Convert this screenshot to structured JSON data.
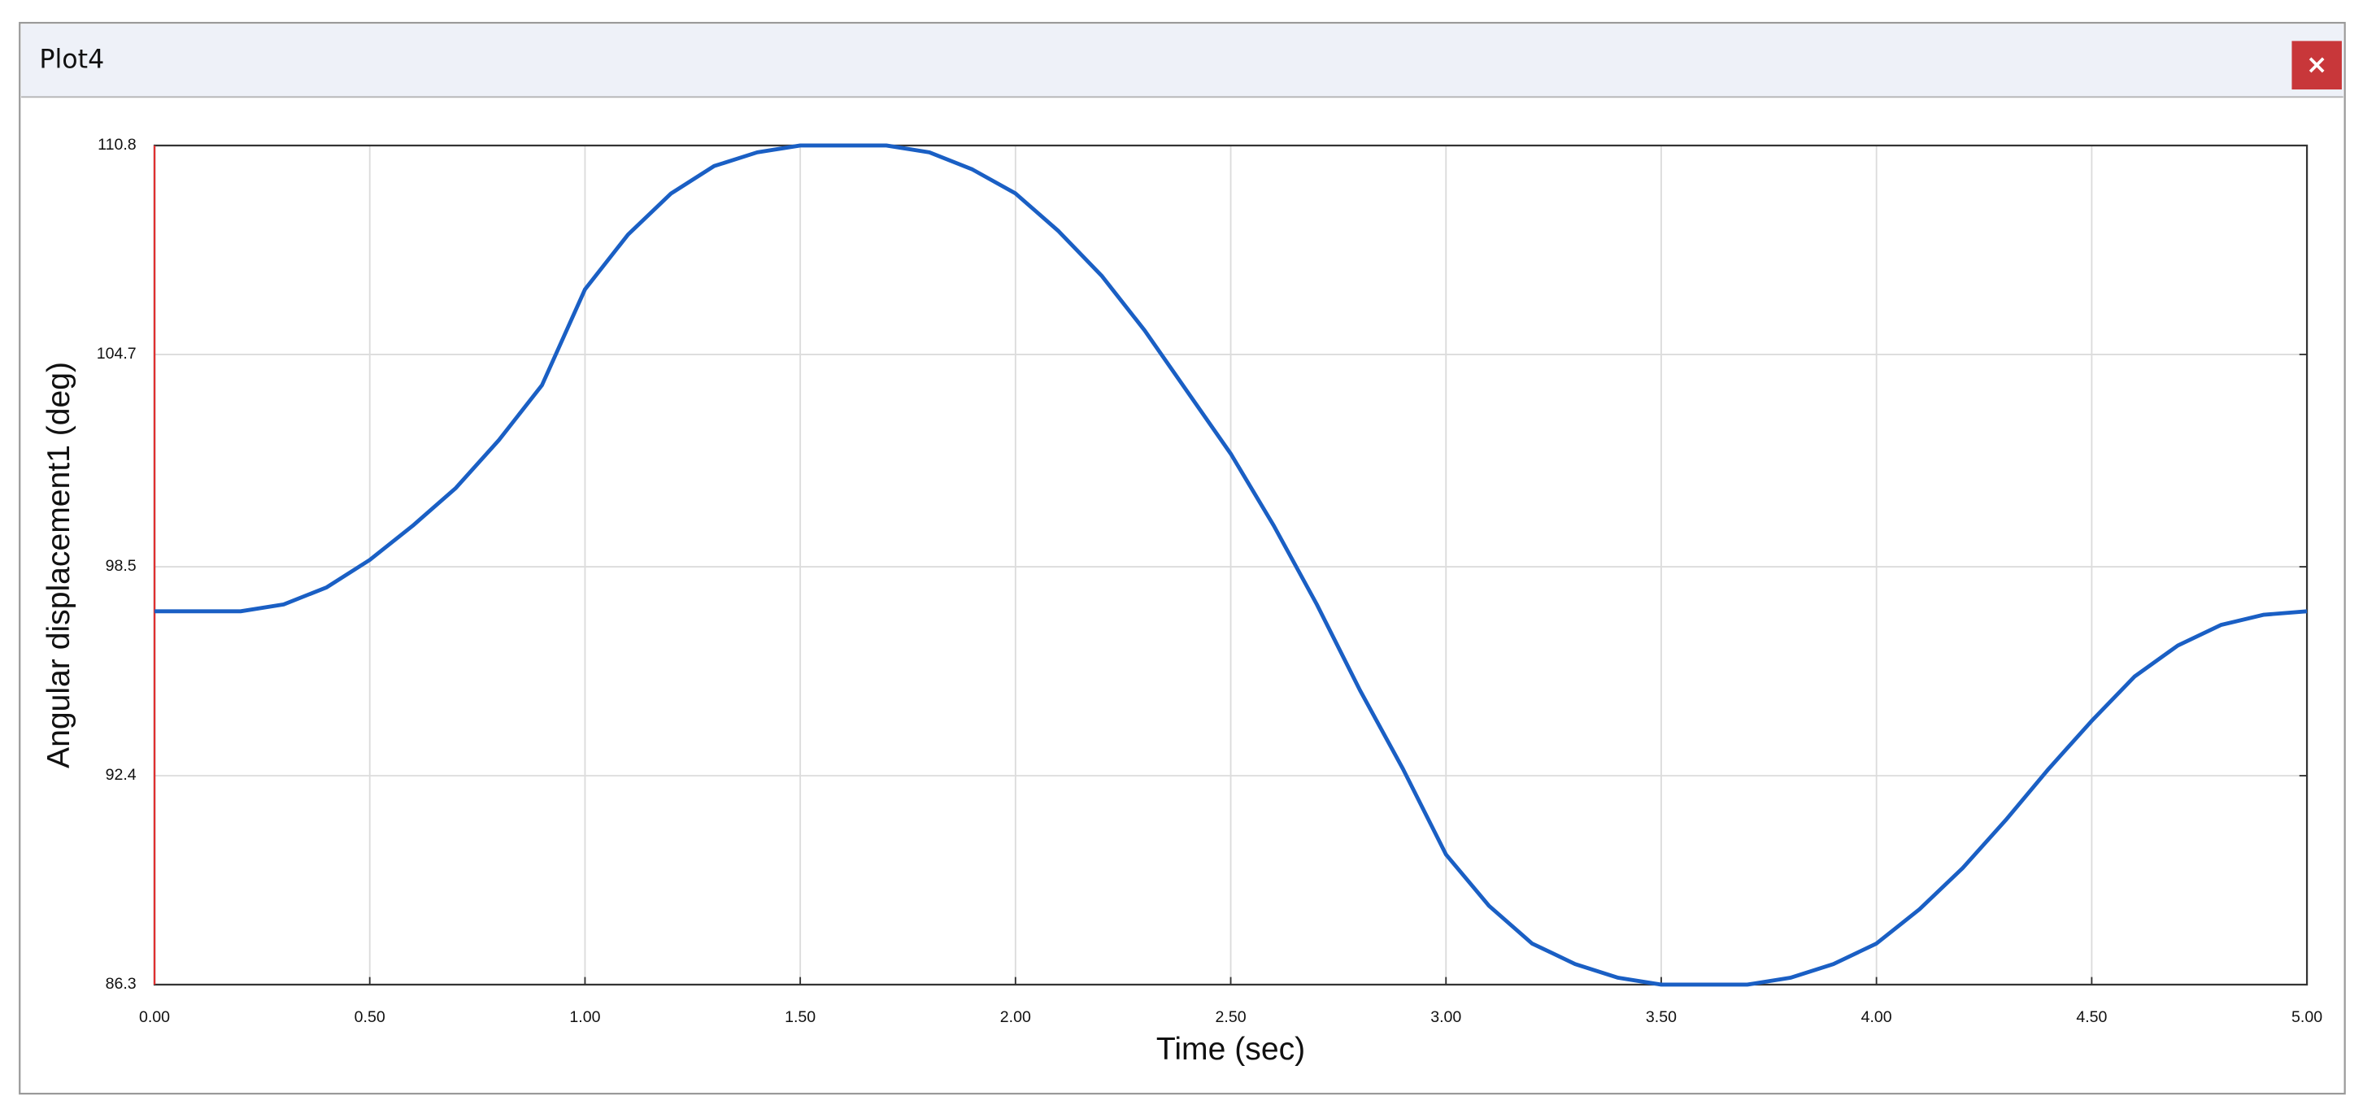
{
  "window": {
    "title": "Plot4",
    "close_label": "×"
  },
  "chart_data": {
    "type": "line",
    "xlabel": "Time (sec)",
    "ylabel": "Angular displacement1 (deg)",
    "x": [
      0,
      0.1,
      0.2,
      0.3,
      0.4,
      0.5,
      0.6,
      0.7,
      0.8,
      0.9,
      1.0,
      1.1,
      1.2,
      1.3,
      1.4,
      1.5,
      1.6,
      1.7,
      1.8,
      1.9,
      2.0,
      2.1,
      2.2,
      2.3,
      2.4,
      2.5,
      2.6,
      2.7,
      2.8,
      2.9,
      3.0,
      3.1,
      3.2,
      3.3,
      3.4,
      3.5,
      3.6,
      3.7,
      3.8,
      3.9,
      4.0,
      4.1,
      4.2,
      4.3,
      4.4,
      4.5,
      4.6,
      4.7,
      4.8,
      4.9,
      5.0
    ],
    "series": [
      {
        "color": "#1a5fc4",
        "values": [
          97.2,
          97.2,
          97.2,
          97.4,
          97.9,
          98.7,
          99.7,
          100.8,
          102.2,
          103.8,
          106.6,
          108.2,
          109.4,
          110.2,
          110.6,
          110.8,
          110.8,
          110.8,
          110.6,
          110.1,
          109.4,
          108.3,
          107.0,
          105.4,
          103.6,
          101.8,
          99.7,
          97.4,
          94.9,
          92.6,
          90.1,
          88.6,
          87.5,
          86.9,
          86.5,
          86.3,
          86.3,
          86.3,
          86.5,
          86.9,
          87.5,
          88.5,
          89.7,
          91.1,
          92.6,
          94.0,
          95.3,
          96.2,
          96.8,
          97.1,
          97.2
        ]
      }
    ],
    "xlim": [
      0,
      5
    ],
    "xticks": [
      {
        "value": 0,
        "label": "0.00"
      },
      {
        "value": 0.5,
        "label": "0.50"
      },
      {
        "value": 1,
        "label": "1.00"
      },
      {
        "value": 1.5,
        "label": "1.50"
      },
      {
        "value": 2,
        "label": "2.00"
      },
      {
        "value": 2.5,
        "label": "2.50"
      },
      {
        "value": 3,
        "label": "3.00"
      },
      {
        "value": 3.5,
        "label": "3.50"
      },
      {
        "value": 4,
        "label": "4.00"
      },
      {
        "value": 4.5,
        "label": "4.50"
      },
      {
        "value": 5,
        "label": "5.00"
      }
    ],
    "ylim": [
      86.3,
      110.8
    ],
    "yticks": [
      86.3,
      92.4,
      98.5,
      104.7,
      110.8
    ],
    "grid": true
  }
}
